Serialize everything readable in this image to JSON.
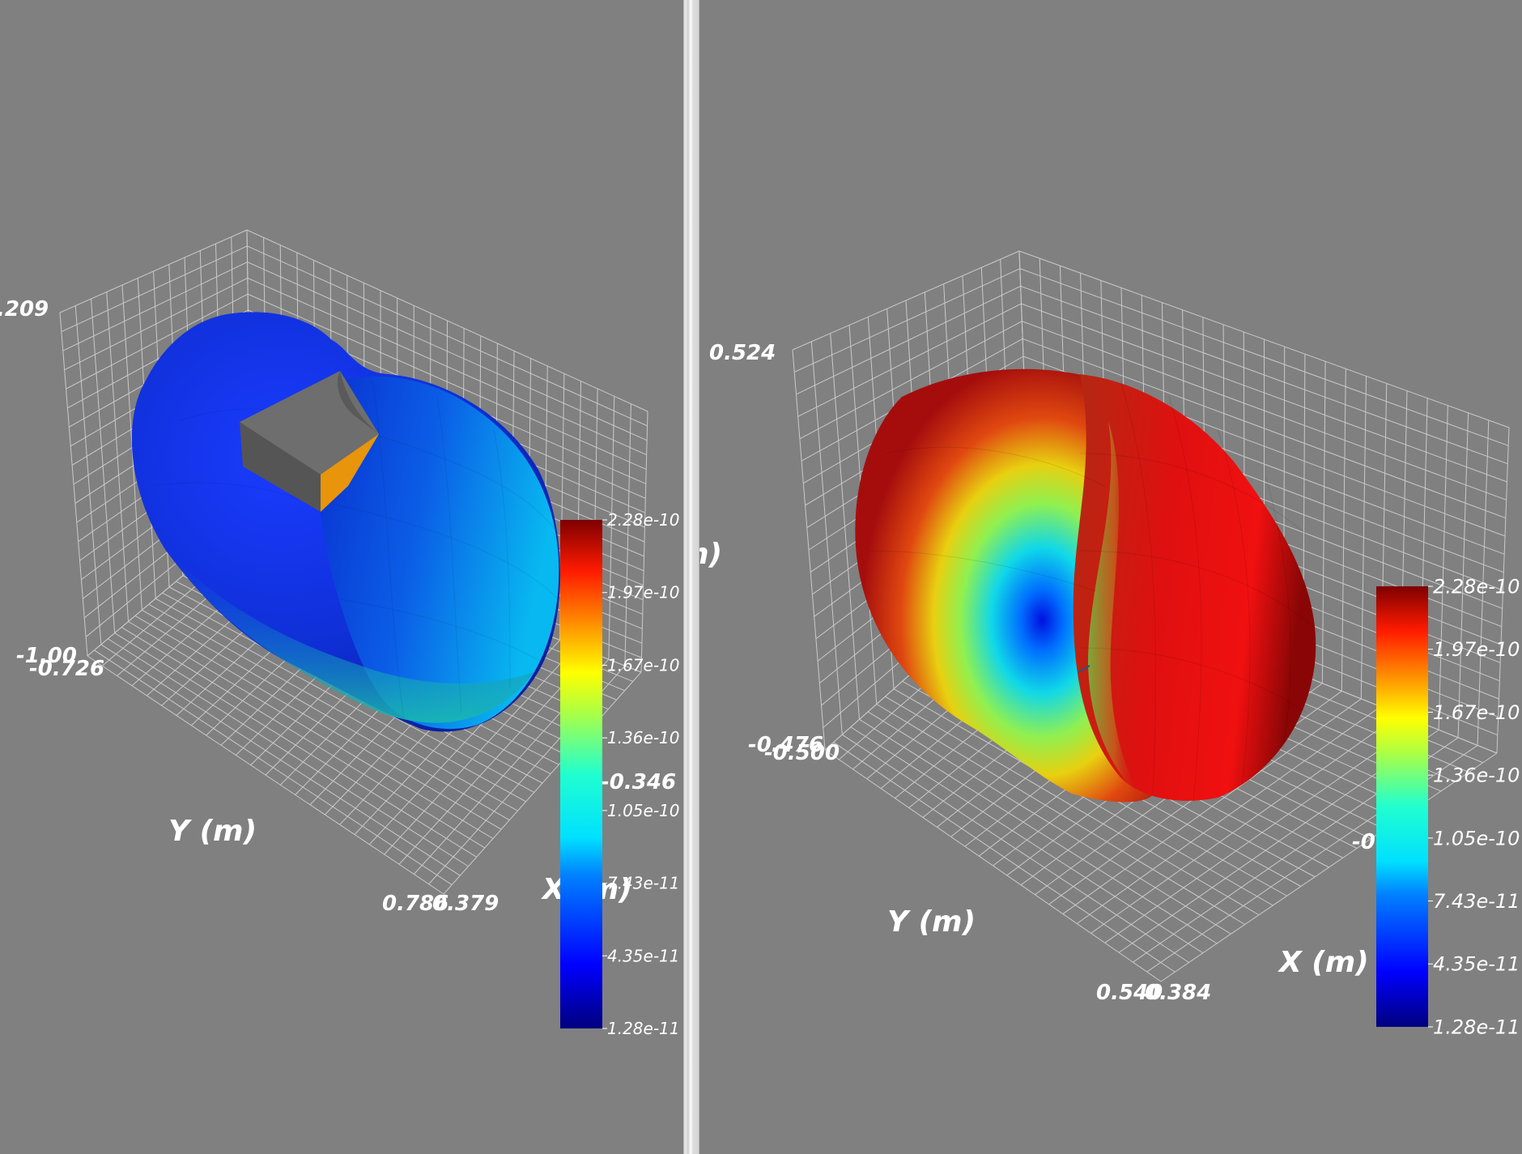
{
  "views": [
    {
      "axes": {
        "z_top_tick": ".209",
        "z_bottom_tick": "-1.00",
        "y_min_tick": "-0.726",
        "y_max_tick": "0.786",
        "x_min_tick": "0.379",
        "x_max_tick": "-0.346",
        "y_label": "Y (m)",
        "x_label": "X (m)"
      },
      "colorbar": {
        "ticks": [
          "2.28e-10",
          "1.97e-10",
          "1.67e-10",
          "1.36e-10",
          "1.05e-10",
          "7.43e-11",
          "4.35e-11",
          "1.28e-11"
        ]
      },
      "surface_color": "#1545e0"
    },
    {
      "axes": {
        "z_top_tick": "0.524",
        "z_bottom_tick": "-0.476",
        "y_min_tick": "-0.500",
        "y_max_tick": "0.540",
        "x_min_tick": "0.384",
        "x_max_tick": "-0",
        "y_label": "Y (m)",
        "x_label": "X (m)",
        "clipped_label": "n)"
      },
      "colorbar": {
        "ticks": [
          "2.28e-10",
          "1.97e-10",
          "1.67e-10",
          "1.36e-10",
          "1.05e-10",
          "7.43e-11",
          "4.35e-11",
          "1.28e-11"
        ]
      },
      "surface_color": "#c81212"
    }
  ],
  "colormap": [
    "#00007f",
    "#0000ff",
    "#00bfff",
    "#00ffcc",
    "#66ff66",
    "#ffff00",
    "#ff8800",
    "#ff0000",
    "#7f0000"
  ]
}
